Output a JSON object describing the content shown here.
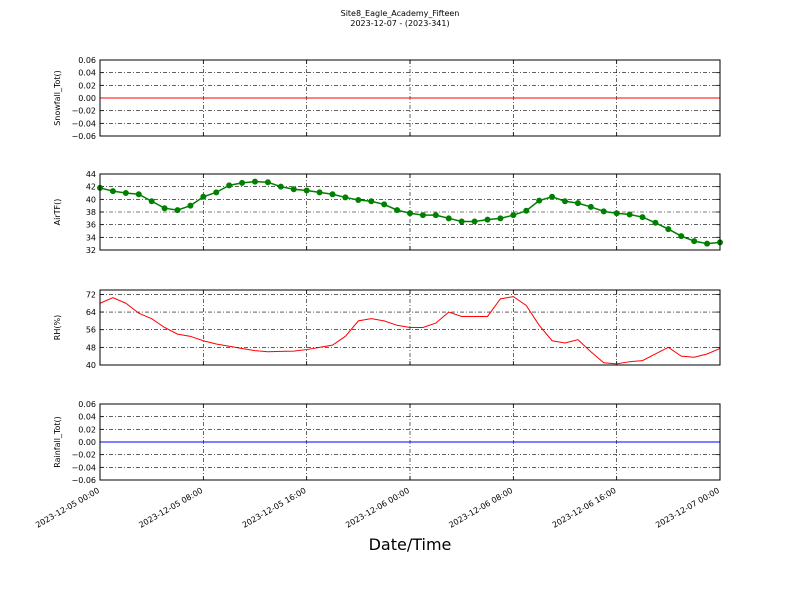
{
  "chart_data": [
    {
      "type": "line",
      "title": "Site8_Eagle_Academy_Fifteen",
      "subtitle": "2023-12-07 - (2023-341)",
      "ylabel": "Snowfall_Tot()",
      "x": [
        "2023-12-05 00:00",
        "2023-12-07 00:00"
      ],
      "values": [
        0,
        0
      ],
      "color": "#ff0000",
      "xlim": [
        "2023-12-05 00:00",
        "2023-12-07 00:00"
      ],
      "xticks": [
        "2023-12-05 00:00",
        "2023-12-05 08:00",
        "2023-12-05 16:00",
        "2023-12-06 00:00",
        "2023-12-06 08:00",
        "2023-12-06 16:00",
        "2023-12-07 00:00"
      ],
      "xtick_labels": false,
      "ylim": [
        -0.06,
        0.06
      ],
      "yticks": [
        {
          "value": -0.06,
          "label": "−0.06"
        },
        {
          "value": -0.04,
          "label": "−0.04"
        },
        {
          "value": -0.02,
          "label": "−0.02"
        },
        {
          "value": 0,
          "label": "0.00"
        },
        0.02,
        0.04,
        0.06
      ],
      "grid": true
    },
    {
      "type": "line",
      "ylabel": "AirTF()",
      "marker": "o",
      "x": [
        "2023-12-05 00:00",
        "2023-12-05 01:00",
        "2023-12-05 02:00",
        "2023-12-05 03:00",
        "2023-12-05 04:00",
        "2023-12-05 05:00",
        "2023-12-05 06:00",
        "2023-12-05 07:00",
        "2023-12-05 08:00",
        "2023-12-05 09:00",
        "2023-12-05 10:00",
        "2023-12-05 11:00",
        "2023-12-05 12:00",
        "2023-12-05 13:00",
        "2023-12-05 14:00",
        "2023-12-05 15:00",
        "2023-12-05 16:00",
        "2023-12-05 17:00",
        "2023-12-05 18:00",
        "2023-12-05 19:00",
        "2023-12-05 20:00",
        "2023-12-05 21:00",
        "2023-12-05 22:00",
        "2023-12-05 23:00",
        "2023-12-06 00:00",
        "2023-12-06 01:00",
        "2023-12-06 02:00",
        "2023-12-06 03:00",
        "2023-12-06 04:00",
        "2023-12-06 05:00",
        "2023-12-06 06:00",
        "2023-12-06 07:00",
        "2023-12-06 08:00",
        "2023-12-06 09:00",
        "2023-12-06 10:00",
        "2023-12-06 11:00",
        "2023-12-06 12:00",
        "2023-12-06 13:00",
        "2023-12-06 14:00",
        "2023-12-06 15:00",
        "2023-12-06 16:00",
        "2023-12-06 17:00",
        "2023-12-06 18:00",
        "2023-12-06 19:00",
        "2023-12-06 20:00",
        "2023-12-06 21:00",
        "2023-12-06 22:00",
        "2023-12-06 23:00",
        "2023-12-07 00:00"
      ],
      "values": [
        41.8,
        41.3,
        41.0,
        40.8,
        39.7,
        38.6,
        38.3,
        39.0,
        40.4,
        41.1,
        42.2,
        42.6,
        42.8,
        42.7,
        42.0,
        41.6,
        41.4,
        41.1,
        40.8,
        40.3,
        39.9,
        39.7,
        39.2,
        38.3,
        37.8,
        37.5,
        37.5,
        37.0,
        36.5,
        36.5,
        36.8,
        37.0,
        37.5,
        38.2,
        39.8,
        40.4,
        39.7,
        39.4,
        38.8,
        38.1,
        37.8,
        37.6,
        37.2,
        36.3,
        35.3,
        34.2,
        33.4,
        33.0,
        33.2
      ],
      "color": "#008000",
      "xlim": [
        "2023-12-05 00:00",
        "2023-12-07 00:00"
      ],
      "xticks": [
        "2023-12-05 00:00",
        "2023-12-05 08:00",
        "2023-12-05 16:00",
        "2023-12-06 00:00",
        "2023-12-06 08:00",
        "2023-12-06 16:00",
        "2023-12-07 00:00"
      ],
      "xtick_labels": false,
      "ylim": [
        32,
        44
      ],
      "yticks": [
        32,
        34,
        36,
        38,
        40,
        42,
        44
      ],
      "grid": true
    },
    {
      "type": "line",
      "ylabel": "RH(%)",
      "x": [
        "2023-12-05 00:00",
        "2023-12-05 01:00",
        "2023-12-05 02:00",
        "2023-12-05 03:00",
        "2023-12-05 04:00",
        "2023-12-05 05:00",
        "2023-12-05 06:00",
        "2023-12-05 07:00",
        "2023-12-05 08:00",
        "2023-12-05 09:00",
        "2023-12-05 10:00",
        "2023-12-05 11:00",
        "2023-12-05 12:00",
        "2023-12-05 13:00",
        "2023-12-05 14:00",
        "2023-12-05 15:00",
        "2023-12-05 16:00",
        "2023-12-05 17:00",
        "2023-12-05 18:00",
        "2023-12-05 19:00",
        "2023-12-05 20:00",
        "2023-12-05 21:00",
        "2023-12-05 22:00",
        "2023-12-05 23:00",
        "2023-12-06 00:00",
        "2023-12-06 01:00",
        "2023-12-06 02:00",
        "2023-12-06 03:00",
        "2023-12-06 04:00",
        "2023-12-06 05:00",
        "2023-12-06 06:00",
        "2023-12-06 07:00",
        "2023-12-06 08:00",
        "2023-12-06 09:00",
        "2023-12-06 10:00",
        "2023-12-06 11:00",
        "2023-12-06 12:00",
        "2023-12-06 13:00",
        "2023-12-06 14:00",
        "2023-12-06 15:00",
        "2023-12-06 16:00",
        "2023-12-06 17:00",
        "2023-12-06 18:00",
        "2023-12-06 19:00",
        "2023-12-06 20:00",
        "2023-12-06 21:00",
        "2023-12-06 22:00",
        "2023-12-06 23:00",
        "2023-12-07 00:00"
      ],
      "values": [
        68,
        70.5,
        68,
        63.5,
        61,
        57,
        54,
        53,
        51,
        49.5,
        48.5,
        47.5,
        46.5,
        46,
        46.2,
        46.3,
        47,
        48,
        49,
        53,
        60,
        61,
        60,
        58,
        57,
        57,
        59,
        64,
        62,
        62,
        62,
        70,
        71,
        67,
        58,
        51,
        50,
        51.5,
        46,
        41,
        40.5,
        41.5,
        42,
        45,
        48,
        44,
        43.5,
        45,
        47.5
      ],
      "color": "#ff0000",
      "xlim": [
        "2023-12-05 00:00",
        "2023-12-07 00:00"
      ],
      "xticks": [
        "2023-12-05 00:00",
        "2023-12-05 08:00",
        "2023-12-05 16:00",
        "2023-12-06 00:00",
        "2023-12-06 08:00",
        "2023-12-06 16:00",
        "2023-12-07 00:00"
      ],
      "xtick_labels": false,
      "ylim": [
        40,
        74
      ],
      "yticks": [
        40,
        48,
        56,
        64,
        72
      ],
      "grid": true
    },
    {
      "type": "line",
      "ylabel": "Rainfall_Tot()",
      "xlabel": "Date/Time",
      "x": [
        "2023-12-05 00:00",
        "2023-12-07 00:00"
      ],
      "values": [
        0,
        0
      ],
      "color": "#0000ff",
      "xlim": [
        "2023-12-05 00:00",
        "2023-12-07 00:00"
      ],
      "xticks": [
        "2023-12-05 00:00",
        "2023-12-05 08:00",
        "2023-12-05 16:00",
        "2023-12-06 00:00",
        "2023-12-06 08:00",
        "2023-12-06 16:00",
        "2023-12-07 00:00"
      ],
      "xtick_labels": true,
      "ylim": [
        -0.06,
        0.06
      ],
      "yticks": [
        {
          "value": -0.06,
          "label": "−0.06"
        },
        {
          "value": -0.04,
          "label": "−0.04"
        },
        {
          "value": -0.02,
          "label": "−0.02"
        },
        {
          "value": 0,
          "label": "0.00"
        },
        0.02,
        0.04,
        0.06
      ],
      "grid": true
    }
  ]
}
